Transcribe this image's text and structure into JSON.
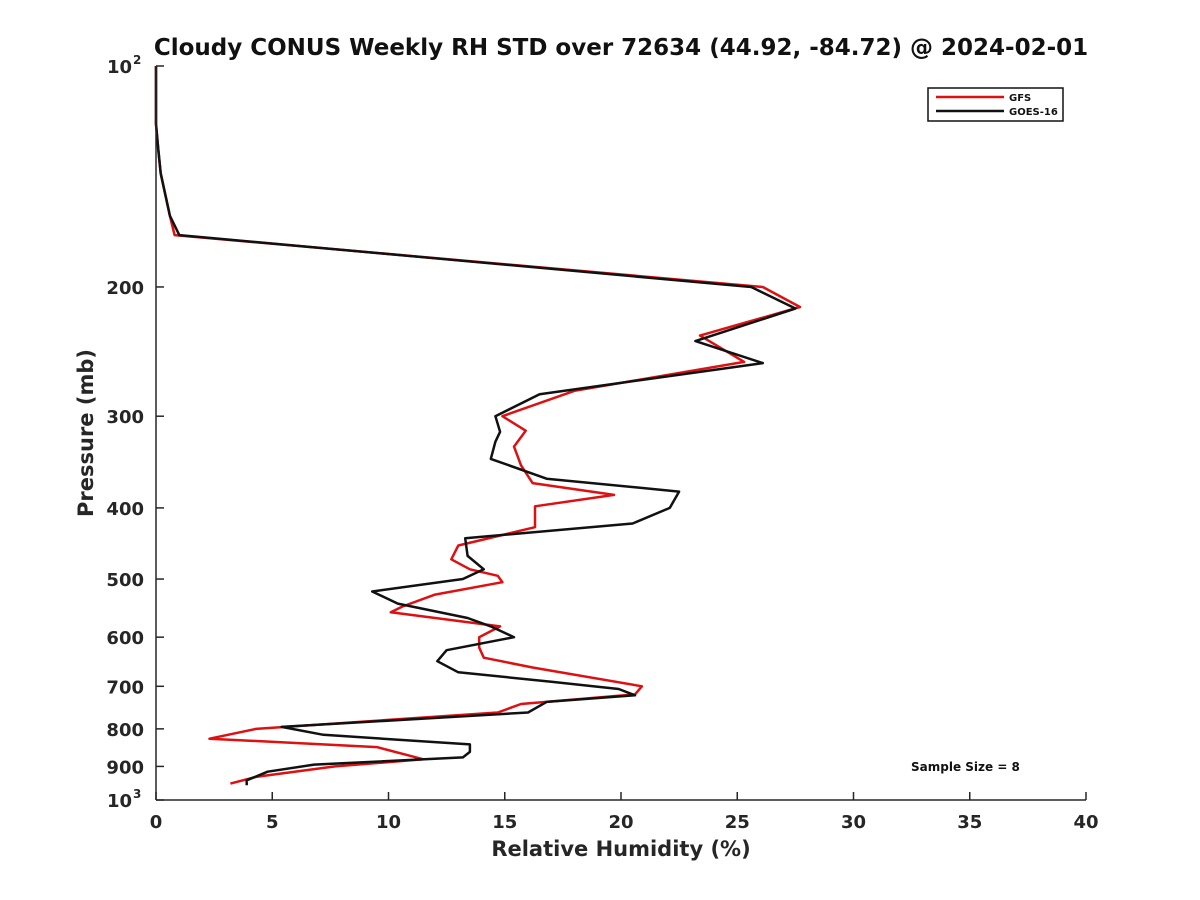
{
  "colors": {
    "gfs": "#dd1111",
    "goes": "#111111",
    "axis": "#262626"
  },
  "chart_data": {
    "type": "line",
    "title": "Cloudy CONUS Weekly RH STD over 72634 (44.92, -84.72) @ 2024-02-01",
    "xlabel": "Relative Humidity (%)",
    "ylabel": "Pressure (mb)",
    "xlim": [
      0,
      40
    ],
    "ylim": [
      100,
      1000
    ],
    "y_scale": "log",
    "y_reversed": true,
    "grid": false,
    "legend_position": "top-right",
    "x_ticks": [
      0,
      5,
      10,
      15,
      20,
      25,
      30,
      35,
      40
    ],
    "x_tick_labels": [
      "0",
      "5",
      "10",
      "15",
      "20",
      "25",
      "30",
      "35",
      "40"
    ],
    "y_ticks": [
      100,
      200,
      300,
      400,
      500,
      600,
      700,
      800,
      900,
      1000
    ],
    "y_tick_labels": [
      {
        "base": "10",
        "sup": "2"
      },
      {
        "base": "200"
      },
      {
        "base": "300"
      },
      {
        "base": "400"
      },
      {
        "base": "500"
      },
      {
        "base": "600"
      },
      {
        "base": "700"
      },
      {
        "base": "800"
      },
      {
        "base": "900"
      },
      {
        "base": "10",
        "sup": "3"
      }
    ],
    "annotation": "Sample Size = 8",
    "series": [
      {
        "name": "GFS",
        "x": [
          0.0,
          0.0,
          0.0,
          0.1,
          0.2,
          0.6,
          0.8,
          26.1,
          27.7,
          23.4,
          25.3,
          18.0,
          14.9,
          15.9,
          15.4,
          15.7,
          16.2,
          19.7,
          16.3,
          16.3,
          13.0,
          12.7,
          13.5,
          14.7,
          14.9,
          12.0,
          10.6,
          10.1,
          14.8,
          13.9,
          13.9,
          14.1,
          16.2,
          20.9,
          20.6,
          15.7,
          14.7,
          4.3,
          2.3,
          9.5,
          11.5,
          7.7,
          4.3,
          3.2
        ],
        "y": [
          100,
          110,
          120,
          130,
          140,
          160,
          170,
          200,
          213,
          233,
          253,
          277,
          300,
          314,
          330,
          350,
          370,
          384,
          398,
          425,
          450,
          470,
          485,
          495,
          505,
          525,
          545,
          555,
          580,
          600,
          620,
          640,
          660,
          700,
          718,
          740,
          760,
          800,
          825,
          847,
          880,
          900,
          930,
          950
        ]
      },
      {
        "name": "GOES-16",
        "x": [
          0.0,
          0.0,
          0.0,
          0.1,
          0.2,
          0.6,
          1.0,
          25.6,
          27.5,
          23.2,
          26.1,
          16.5,
          14.6,
          14.8,
          14.6,
          14.4,
          16.8,
          22.5,
          22.1,
          20.5,
          13.3,
          13.4,
          14.1,
          13.2,
          9.3,
          10.4,
          13.4,
          14.4,
          15.4,
          12.5,
          12.1,
          13.0,
          17.0,
          19.9,
          20.6,
          16.8,
          16.0,
          5.4,
          7.2,
          13.5,
          13.5,
          13.2,
          6.8,
          4.8,
          3.9,
          3.9
        ],
        "y": [
          100,
          110,
          120,
          130,
          140,
          160,
          170,
          200,
          214,
          237,
          254,
          280,
          300,
          315,
          325,
          343,
          365,
          380,
          400,
          420,
          440,
          465,
          485,
          500,
          520,
          540,
          565,
          580,
          600,
          625,
          647,
          670,
          690,
          706,
          720,
          735,
          760,
          795,
          815,
          840,
          860,
          875,
          895,
          915,
          940,
          955
        ]
      }
    ]
  }
}
